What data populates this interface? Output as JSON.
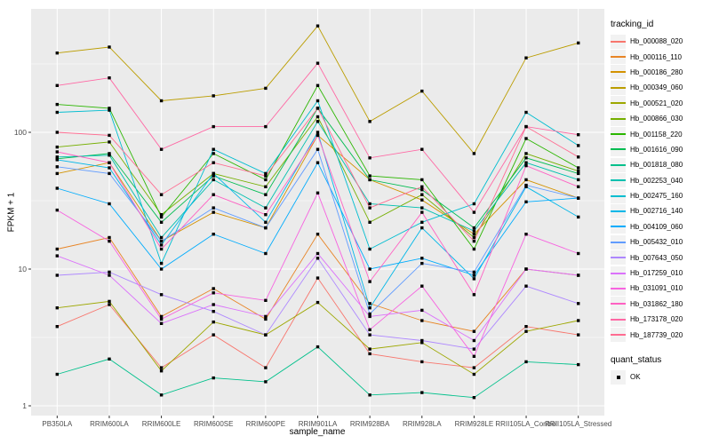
{
  "axes": {
    "x_label": "sample_name",
    "y_label": "FPKM + 1",
    "y_tick_labels": [
      "1",
      "10",
      "100"
    ]
  },
  "legend": {
    "tracking_title": "tracking_id",
    "quant_title": "quant_status",
    "quant_items": [
      "OK"
    ]
  },
  "colors": {
    "background": "#FFFFFF",
    "panel_bg": "#EBEBEB",
    "grid": "#FFFFFF",
    "axis_text": "#4D4D4D",
    "tick_mark": "#333333",
    "point": "#000000",
    "legend_key_bg": "#F2F2F2"
  },
  "chart_data": {
    "type": "line",
    "title": "",
    "xlabel": "sample_name",
    "ylabel": "FPKM + 1",
    "y_scale": "log10",
    "y_ticks": [
      1,
      10,
      100
    ],
    "y_minor_ticks": [
      3.162,
      31.62,
      316.2
    ],
    "ylim": [
      0.85,
      800
    ],
    "grid": "white major and minor gridlines on gray panel",
    "legend_position": "right",
    "point_marker": {
      "shape": "square",
      "color": "#000000",
      "meaning": "quant_status OK"
    },
    "categories": [
      "PB350LA",
      "RRIM600LA",
      "RRIM600LE",
      "RRIM600SE",
      "RRIM600PE",
      "RRIM901LA",
      "RRIM928BA",
      "RRIM928LA",
      "RRIM928LE",
      "RRII105LA_Control",
      "RRII105LA_Stressed"
    ],
    "series": [
      {
        "name": "Hb_000088_020",
        "color": "#F8766D",
        "values": [
          3.8,
          5.5,
          1.9,
          3.3,
          1.9,
          8.6,
          2.4,
          2.1,
          1.9,
          3.8,
          3.3
        ]
      },
      {
        "name": "Hb_000116_110",
        "color": "#E88526",
        "values": [
          14,
          17,
          4.5,
          7.2,
          4.3,
          18,
          5.6,
          4.2,
          3.5,
          10,
          9
        ]
      },
      {
        "name": "Hb_000186_280",
        "color": "#D39200",
        "values": [
          50,
          60,
          16,
          26,
          20,
          95,
          45,
          32,
          18,
          45,
          33
        ]
      },
      {
        "name": "Hb_000349_060",
        "color": "#BB9D00",
        "values": [
          380,
          420,
          170,
          185,
          210,
          600,
          120,
          200,
          70,
          350,
          450
        ]
      },
      {
        "name": "Hb_000521_020",
        "color": "#9DA700",
        "values": [
          5.2,
          5.8,
          1.8,
          4.1,
          3.3,
          5.7,
          2.6,
          2.9,
          1.7,
          3.5,
          4.2
        ]
      },
      {
        "name": "Hb_000866_030",
        "color": "#75AF00",
        "values": [
          78,
          85,
          25,
          50,
          40,
          130,
          22,
          35,
          17,
          70,
          52
        ]
      },
      {
        "name": "Hb_001158_220",
        "color": "#2BB600",
        "values": [
          160,
          150,
          24,
          70,
          45,
          220,
          48,
          45,
          14,
          90,
          55
        ]
      },
      {
        "name": "Hb_001616_090",
        "color": "#00BC51",
        "values": [
          64,
          70,
          22,
          48,
          35,
          150,
          45,
          38,
          20,
          65,
          50
        ]
      },
      {
        "name": "Hb_001818_080",
        "color": "#00C08B",
        "values": [
          1.7,
          2.2,
          1.2,
          1.6,
          1.5,
          2.7,
          1.2,
          1.25,
          1.15,
          2.1,
          2.0
        ]
      },
      {
        "name": "Hb_002253_040",
        "color": "#00C0AF",
        "values": [
          66,
          68,
          17,
          45,
          28,
          120,
          30,
          28,
          19,
          60,
          45
        ]
      },
      {
        "name": "Hb_002475_160",
        "color": "#00BDD0",
        "values": [
          140,
          145,
          11,
          75,
          50,
          170,
          14,
          22,
          30,
          140,
          80
        ]
      },
      {
        "name": "Hb_002716_140",
        "color": "#00B7E8",
        "values": [
          63,
          55,
          15,
          50,
          22,
          100,
          5.2,
          20,
          8.5,
          40,
          24
        ]
      },
      {
        "name": "Hb_004109_060",
        "color": "#00ACFC",
        "values": [
          39,
          30,
          10,
          18,
          13,
          60,
          10,
          12,
          9,
          31,
          33
        ]
      },
      {
        "name": "Hb_005432_010",
        "color": "#619CFF",
        "values": [
          56,
          50,
          16,
          28,
          20,
          75,
          4.7,
          11,
          9.5,
          41,
          33
        ]
      },
      {
        "name": "Hb_007643_050",
        "color": "#AE87FF",
        "values": [
          9,
          9.5,
          6.5,
          4.9,
          3.3,
          12,
          3.3,
          3.0,
          2.6,
          7.5,
          5.6
        ]
      },
      {
        "name": "Hb_017259_010",
        "color": "#DB72FB",
        "values": [
          12.5,
          9,
          4.0,
          5.5,
          4.5,
          13,
          4.5,
          5.0,
          3.0,
          10,
          9
        ]
      },
      {
        "name": "Hb_031091_010",
        "color": "#F763E0",
        "values": [
          27,
          16,
          4.3,
          6.7,
          5.9,
          36,
          3.6,
          7.5,
          2.3,
          18,
          13
        ]
      },
      {
        "name": "Hb_031862_180",
        "color": "#FF61C3",
        "values": [
          72,
          60,
          14,
          35,
          25,
          95,
          8.1,
          26,
          6.5,
          57,
          40
        ]
      },
      {
        "name": "Hb_173178_020",
        "color": "#FF68A4",
        "values": [
          220,
          250,
          75,
          110,
          110,
          320,
          65,
          75,
          26,
          110,
          96
        ]
      },
      {
        "name": "Hb_187739_020",
        "color": "#FF6C91",
        "values": [
          100,
          95,
          35,
          60,
          48,
          150,
          28,
          40,
          16,
          110,
          66
        ]
      }
    ]
  }
}
